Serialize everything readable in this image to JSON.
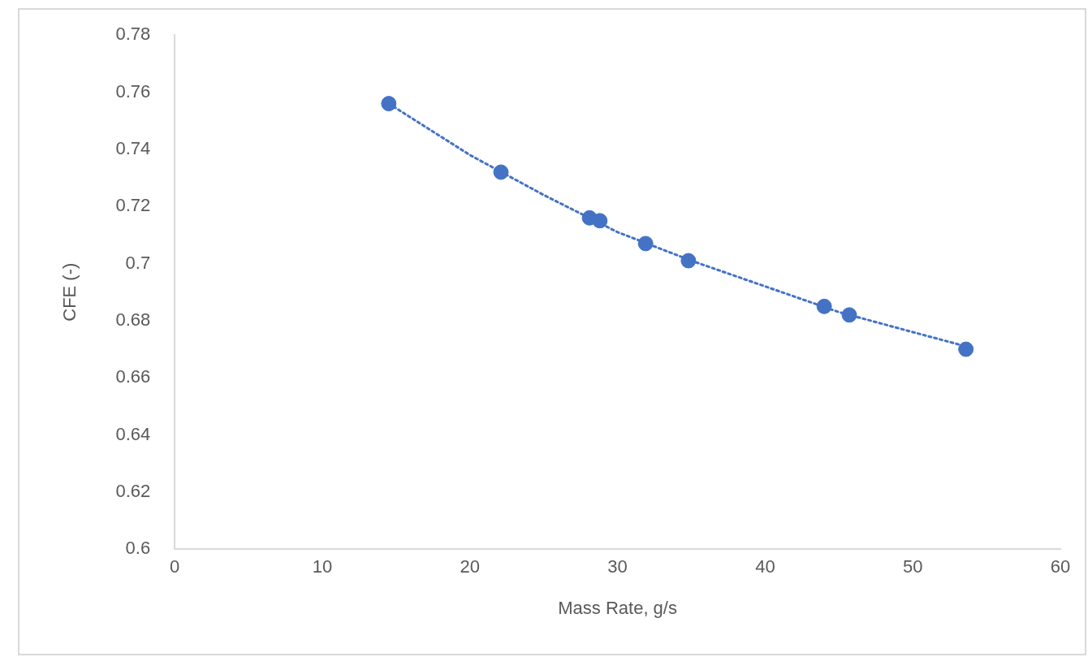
{
  "chart_data": {
    "type": "scatter",
    "xlabel": "Mass Rate, g/s",
    "ylabel": "CFE (-)",
    "xlim": [
      0,
      60
    ],
    "xticks": [
      0,
      10,
      20,
      30,
      40,
      50,
      60
    ],
    "ylim": [
      0.6,
      0.78
    ],
    "yticks": [
      {
        "value": 0.6,
        "label": "0.6"
      },
      0.62,
      0.64,
      0.66,
      0.68,
      {
        "value": 0.7,
        "label": "0.7"
      },
      0.72,
      0.74,
      0.76,
      0.78
    ],
    "grid": false,
    "legend": false,
    "series": [
      {
        "marker": "circle",
        "color": "#4472c4",
        "x": [
          14.5,
          22.1,
          28.1,
          28.8,
          31.9,
          34.8,
          44.0,
          45.7,
          53.6
        ],
        "values": [
          0.756,
          0.732,
          0.716,
          0.715,
          0.707,
          0.701,
          0.685,
          0.682,
          0.67
        ]
      },
      {
        "type": "line",
        "marker": "none",
        "color": "#4472c4",
        "line_style": "dotted",
        "x": [
          14.5,
          20,
          25,
          30,
          35,
          40,
          45,
          50,
          53.6
        ],
        "values": [
          0.756,
          0.738,
          0.724,
          0.711,
          0.701,
          0.692,
          0.683,
          0.676,
          0.671
        ]
      }
    ]
  }
}
